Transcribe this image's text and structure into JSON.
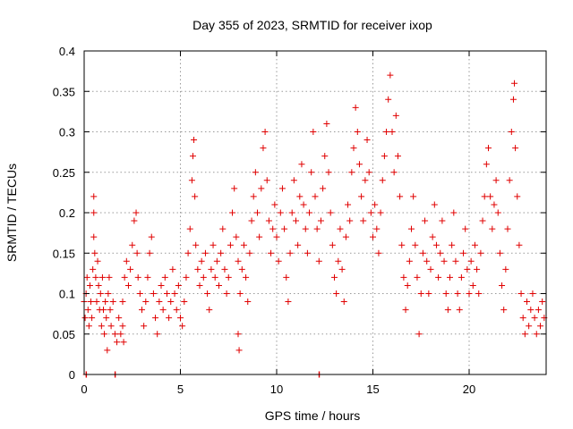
{
  "chart_data": {
    "type": "scatter",
    "title": "Day 355 of 2023, SRMTID for receiver ixop",
    "xlabel": "GPS time / hours",
    "ylabel": "SRMTID / TECUs",
    "xlim": [
      0,
      24
    ],
    "ylim": [
      0,
      0.4
    ],
    "x_ticks": [
      0,
      5,
      10,
      15,
      20
    ],
    "x_tick_labels": [
      "0",
      "5",
      "10",
      "15",
      "20"
    ],
    "y_ticks": [
      0,
      0.05,
      0.1,
      0.15,
      0.2,
      0.25,
      0.3,
      0.35,
      0.4
    ],
    "y_tick_labels": [
      "0",
      "0.05",
      "0.1",
      "0.15",
      "0.2",
      "0.25",
      "0.3",
      "0.35",
      "0.4"
    ],
    "grid": true,
    "marker": "+",
    "color": "#e00000",
    "series": [
      {
        "name": "SRMTID",
        "points": [
          [
            0.0,
            0.09
          ],
          [
            0.05,
            0.07
          ],
          [
            0.1,
            0.1
          ],
          [
            0.15,
            0.12
          ],
          [
            0.2,
            0.08
          ],
          [
            0.25,
            0.06
          ],
          [
            0.3,
            0.11
          ],
          [
            0.35,
            0.09
          ],
          [
            0.4,
            0.07
          ],
          [
            0.45,
            0.13
          ],
          [
            0.5,
            0.17
          ],
          [
            0.5,
            0.2
          ],
          [
            0.5,
            0.22
          ],
          [
            0.55,
            0.15
          ],
          [
            0.6,
            0.12
          ],
          [
            0.65,
            0.09
          ],
          [
            0.7,
            0.14
          ],
          [
            0.75,
            0.11
          ],
          [
            0.8,
            0.08
          ],
          [
            0.85,
            0.1
          ],
          [
            0.9,
            0.06
          ],
          [
            0.95,
            0.12
          ],
          [
            1.0,
            0.08
          ],
          [
            1.05,
            0.05
          ],
          [
            1.1,
            0.09
          ],
          [
            1.15,
            0.07
          ],
          [
            1.2,
            0.03
          ],
          [
            1.25,
            0.1
          ],
          [
            1.3,
            0.12
          ],
          [
            1.35,
            0.08
          ],
          [
            1.4,
            0.06
          ],
          [
            1.5,
            0.09
          ],
          [
            1.6,
            0.05
          ],
          [
            1.7,
            0.04
          ],
          [
            1.8,
            0.07
          ],
          [
            1.9,
            0.05
          ],
          [
            2.0,
            0.06
          ],
          [
            2.0,
            0.09
          ],
          [
            2.05,
            0.04
          ],
          [
            2.1,
            0.12
          ],
          [
            2.2,
            0.14
          ],
          [
            2.3,
            0.11
          ],
          [
            2.4,
            0.13
          ],
          [
            2.5,
            0.16
          ],
          [
            2.6,
            0.19
          ],
          [
            2.7,
            0.2
          ],
          [
            2.75,
            0.15
          ],
          [
            2.8,
            0.12
          ],
          [
            2.9,
            0.1
          ],
          [
            3.0,
            0.08
          ],
          [
            3.1,
            0.06
          ],
          [
            3.2,
            0.09
          ],
          [
            3.3,
            0.12
          ],
          [
            3.4,
            0.15
          ],
          [
            3.5,
            0.17
          ],
          [
            3.6,
            0.1
          ],
          [
            3.7,
            0.07
          ],
          [
            3.8,
            0.05
          ],
          [
            3.9,
            0.09
          ],
          [
            4.0,
            0.11
          ],
          [
            4.1,
            0.08
          ],
          [
            4.2,
            0.12
          ],
          [
            4.3,
            0.1
          ],
          [
            4.4,
            0.07
          ],
          [
            4.5,
            0.09
          ],
          [
            4.6,
            0.13
          ],
          [
            4.7,
            0.1
          ],
          [
            4.8,
            0.08
          ],
          [
            4.9,
            0.11
          ],
          [
            5.0,
            0.07
          ],
          [
            5.1,
            0.06
          ],
          [
            5.2,
            0.09
          ],
          [
            5.3,
            0.12
          ],
          [
            5.4,
            0.15
          ],
          [
            5.5,
            0.18
          ],
          [
            5.6,
            0.24
          ],
          [
            5.65,
            0.27
          ],
          [
            5.7,
            0.29
          ],
          [
            5.75,
            0.22
          ],
          [
            5.8,
            0.16
          ],
          [
            5.9,
            0.13
          ],
          [
            6.0,
            0.11
          ],
          [
            6.1,
            0.14
          ],
          [
            6.2,
            0.12
          ],
          [
            6.3,
            0.15
          ],
          [
            6.4,
            0.1
          ],
          [
            6.5,
            0.08
          ],
          [
            6.6,
            0.13
          ],
          [
            6.7,
            0.16
          ],
          [
            6.8,
            0.12
          ],
          [
            6.9,
            0.14
          ],
          [
            7.0,
            0.11
          ],
          [
            7.1,
            0.15
          ],
          [
            7.2,
            0.18
          ],
          [
            7.3,
            0.13
          ],
          [
            7.4,
            0.1
          ],
          [
            7.5,
            0.12
          ],
          [
            7.6,
            0.16
          ],
          [
            7.7,
            0.2
          ],
          [
            7.8,
            0.23
          ],
          [
            7.9,
            0.17
          ],
          [
            8.0,
            0.14
          ],
          [
            8.0,
            0.05
          ],
          [
            8.05,
            0.03
          ],
          [
            8.1,
            0.1
          ],
          [
            8.2,
            0.13
          ],
          [
            8.3,
            0.16
          ],
          [
            8.4,
            0.12
          ],
          [
            8.5,
            0.09
          ],
          [
            8.6,
            0.15
          ],
          [
            8.7,
            0.19
          ],
          [
            8.8,
            0.22
          ],
          [
            8.9,
            0.25
          ],
          [
            9.0,
            0.2
          ],
          [
            9.1,
            0.17
          ],
          [
            9.2,
            0.23
          ],
          [
            9.3,
            0.28
          ],
          [
            9.4,
            0.3
          ],
          [
            9.5,
            0.24
          ],
          [
            9.6,
            0.19
          ],
          [
            9.7,
            0.15
          ],
          [
            9.8,
            0.18
          ],
          [
            9.9,
            0.21
          ],
          [
            10.0,
            0.17
          ],
          [
            10.1,
            0.14
          ],
          [
            10.2,
            0.2
          ],
          [
            10.3,
            0.23
          ],
          [
            10.4,
            0.18
          ],
          [
            10.5,
            0.12
          ],
          [
            10.6,
            0.09
          ],
          [
            10.7,
            0.15
          ],
          [
            10.8,
            0.2
          ],
          [
            10.9,
            0.24
          ],
          [
            11.0,
            0.19
          ],
          [
            11.1,
            0.16
          ],
          [
            11.2,
            0.22
          ],
          [
            11.3,
            0.26
          ],
          [
            11.4,
            0.21
          ],
          [
            11.5,
            0.18
          ],
          [
            11.6,
            0.15
          ],
          [
            11.7,
            0.2
          ],
          [
            11.8,
            0.25
          ],
          [
            11.9,
            0.3
          ],
          [
            12.0,
            0.22
          ],
          [
            12.1,
            0.18
          ],
          [
            12.2,
            0.14
          ],
          [
            12.3,
            0.19
          ],
          [
            12.4,
            0.23
          ],
          [
            12.5,
            0.27
          ],
          [
            12.6,
            0.31
          ],
          [
            12.7,
            0.25
          ],
          [
            12.8,
            0.2
          ],
          [
            12.9,
            0.16
          ],
          [
            13.0,
            0.12
          ],
          [
            13.1,
            0.1
          ],
          [
            13.2,
            0.14
          ],
          [
            13.3,
            0.18
          ],
          [
            13.4,
            0.13
          ],
          [
            13.5,
            0.09
          ],
          [
            13.6,
            0.17
          ],
          [
            13.7,
            0.21
          ],
          [
            13.8,
            0.19
          ],
          [
            13.9,
            0.25
          ],
          [
            14.0,
            0.28
          ],
          [
            14.1,
            0.33
          ],
          [
            14.2,
            0.3
          ],
          [
            14.3,
            0.26
          ],
          [
            14.4,
            0.22
          ],
          [
            14.5,
            0.19
          ],
          [
            14.6,
            0.24
          ],
          [
            14.7,
            0.29
          ],
          [
            14.8,
            0.25
          ],
          [
            14.9,
            0.2
          ],
          [
            15.0,
            0.17
          ],
          [
            15.1,
            0.21
          ],
          [
            15.2,
            0.18
          ],
          [
            15.3,
            0.15
          ],
          [
            15.4,
            0.2
          ],
          [
            15.5,
            0.24
          ],
          [
            15.6,
            0.27
          ],
          [
            15.7,
            0.3
          ],
          [
            15.8,
            0.34
          ],
          [
            15.9,
            0.37
          ],
          [
            16.0,
            0.3
          ],
          [
            16.1,
            0.25
          ],
          [
            16.2,
            0.32
          ],
          [
            16.3,
            0.27
          ],
          [
            16.4,
            0.22
          ],
          [
            16.5,
            0.16
          ],
          [
            16.6,
            0.12
          ],
          [
            16.7,
            0.08
          ],
          [
            16.8,
            0.11
          ],
          [
            16.9,
            0.14
          ],
          [
            17.0,
            0.18
          ],
          [
            17.1,
            0.22
          ],
          [
            17.2,
            0.16
          ],
          [
            17.3,
            0.12
          ],
          [
            17.4,
            0.05
          ],
          [
            17.5,
            0.1
          ],
          [
            17.6,
            0.15
          ],
          [
            17.7,
            0.19
          ],
          [
            17.8,
            0.14
          ],
          [
            17.9,
            0.1
          ],
          [
            18.0,
            0.13
          ],
          [
            18.1,
            0.17
          ],
          [
            18.2,
            0.21
          ],
          [
            18.3,
            0.16
          ],
          [
            18.4,
            0.12
          ],
          [
            18.5,
            0.15
          ],
          [
            18.6,
            0.19
          ],
          [
            18.7,
            0.14
          ],
          [
            18.8,
            0.1
          ],
          [
            18.9,
            0.08
          ],
          [
            19.0,
            0.12
          ],
          [
            19.1,
            0.16
          ],
          [
            19.2,
            0.2
          ],
          [
            19.3,
            0.14
          ],
          [
            19.4,
            0.1
          ],
          [
            19.5,
            0.08
          ],
          [
            19.6,
            0.12
          ],
          [
            19.7,
            0.15
          ],
          [
            19.8,
            0.18
          ],
          [
            19.9,
            0.13
          ],
          [
            20.0,
            0.1
          ],
          [
            20.1,
            0.14
          ],
          [
            20.2,
            0.11
          ],
          [
            20.3,
            0.16
          ],
          [
            20.4,
            0.13
          ],
          [
            20.5,
            0.1
          ],
          [
            20.6,
            0.15
          ],
          [
            20.7,
            0.19
          ],
          [
            20.8,
            0.22
          ],
          [
            20.9,
            0.26
          ],
          [
            21.0,
            0.28
          ],
          [
            21.1,
            0.22
          ],
          [
            21.2,
            0.18
          ],
          [
            21.3,
            0.21
          ],
          [
            21.4,
            0.24
          ],
          [
            21.5,
            0.2
          ],
          [
            21.6,
            0.15
          ],
          [
            21.7,
            0.11
          ],
          [
            21.8,
            0.08
          ],
          [
            21.9,
            0.13
          ],
          [
            22.0,
            0.18
          ],
          [
            22.1,
            0.24
          ],
          [
            22.2,
            0.3
          ],
          [
            22.3,
            0.34
          ],
          [
            22.35,
            0.36
          ],
          [
            22.4,
            0.28
          ],
          [
            22.5,
            0.22
          ],
          [
            22.6,
            0.16
          ],
          [
            22.7,
            0.1
          ],
          [
            22.8,
            0.07
          ],
          [
            22.9,
            0.05
          ],
          [
            23.0,
            0.09
          ],
          [
            23.1,
            0.06
          ],
          [
            23.2,
            0.08
          ],
          [
            23.3,
            0.1
          ],
          [
            23.4,
            0.07
          ],
          [
            23.5,
            0.05
          ],
          [
            23.6,
            0.08
          ],
          [
            23.7,
            0.06
          ],
          [
            23.8,
            0.09
          ],
          [
            23.9,
            0.07
          ],
          [
            0.1,
            0.0
          ],
          [
            0.12,
            0.0
          ],
          [
            1.6,
            0.0
          ],
          [
            1.62,
            0.0
          ],
          [
            12.2,
            0.0
          ],
          [
            12.22,
            0.0
          ]
        ]
      }
    ]
  }
}
